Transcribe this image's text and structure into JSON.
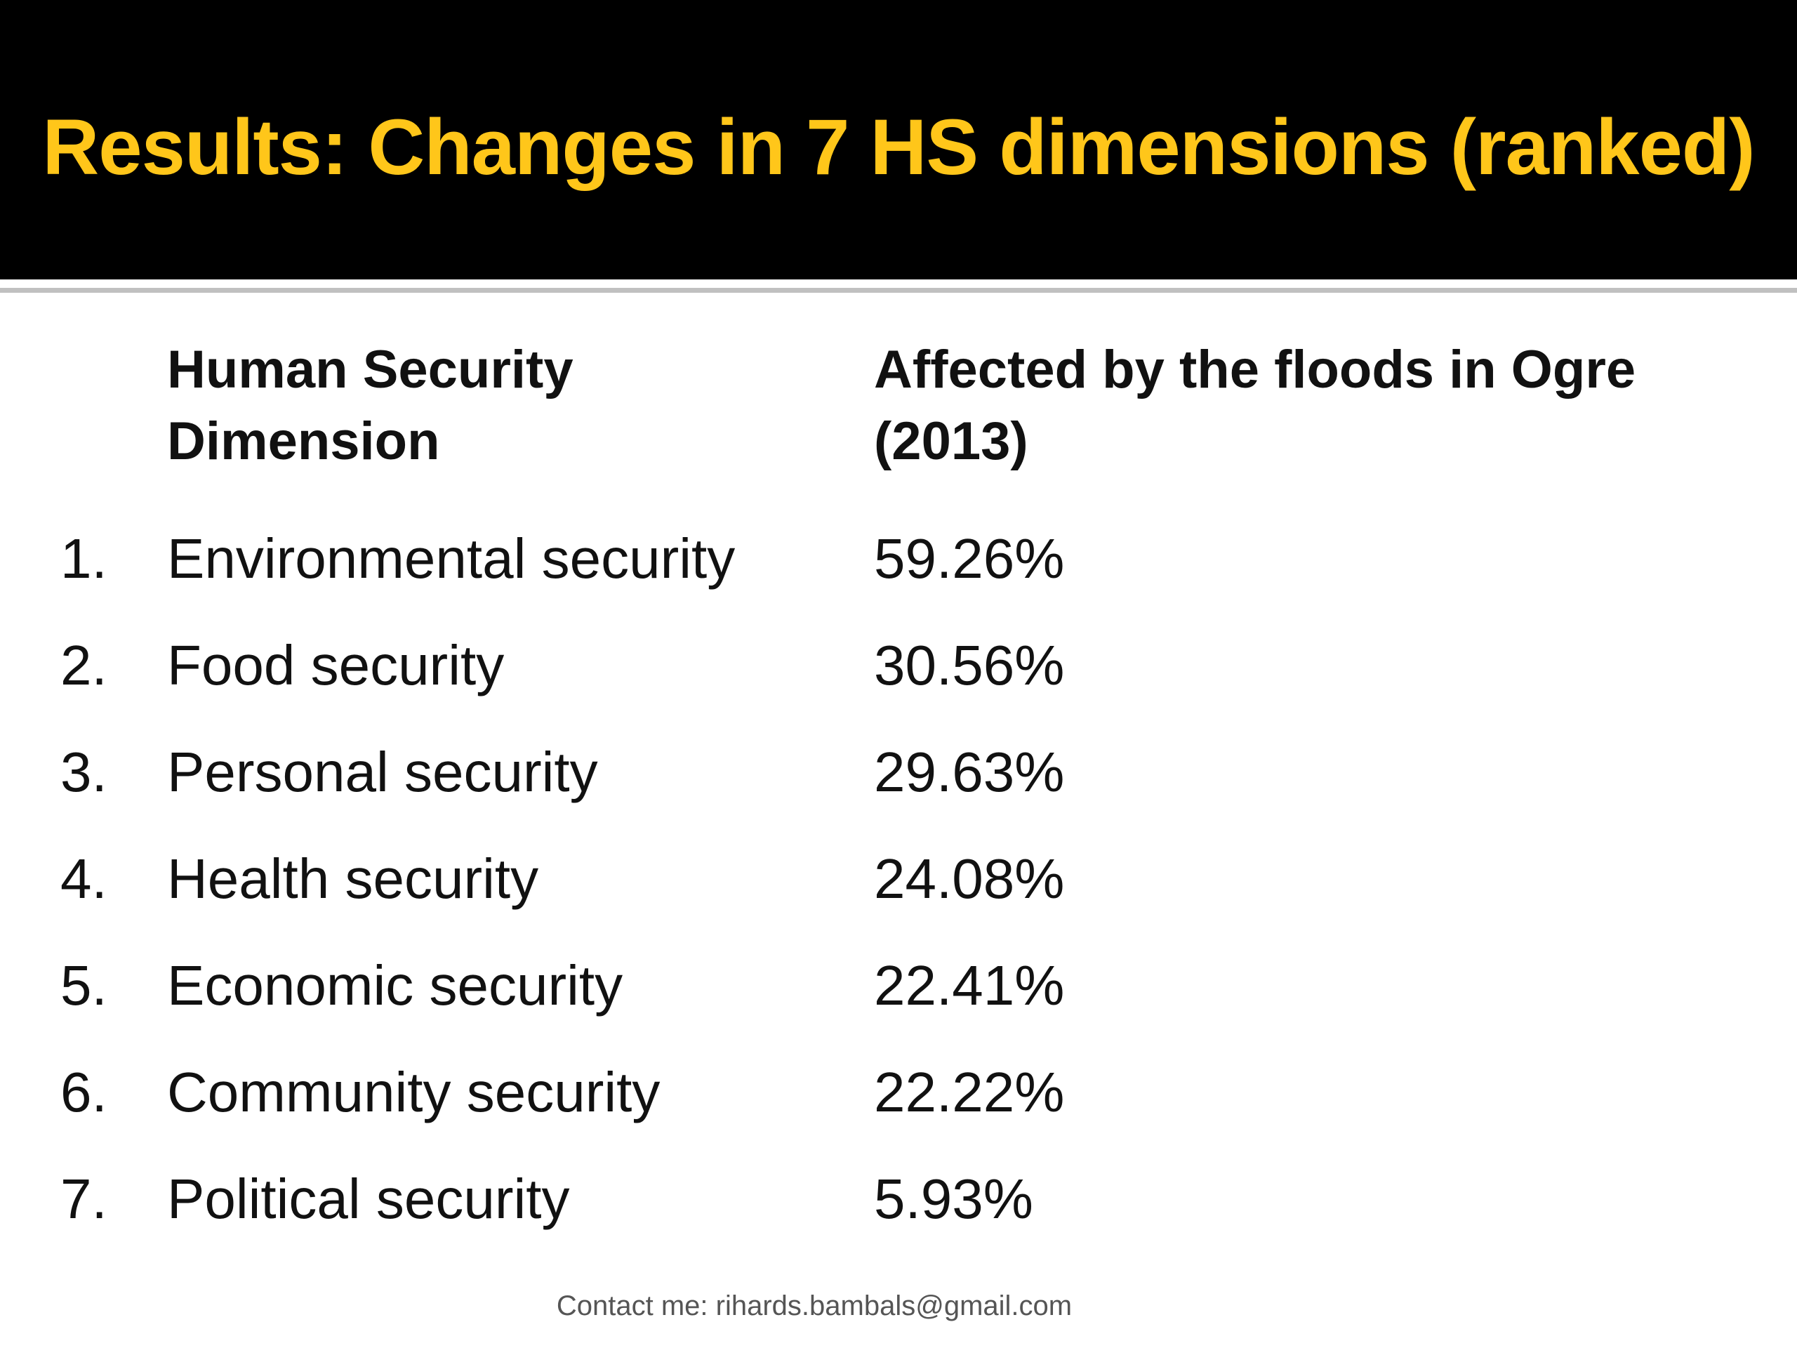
{
  "slide": {
    "title": "Results: Changes in 7 HS dimensions (ranked)",
    "title_color": "#FFC61A",
    "header_background": "#000000"
  },
  "table": {
    "header_dimension_line1": "Human Security",
    "header_dimension_line2": "Dimension",
    "header_value_line1": "Affected by the floods in Ogre",
    "header_value_line2": "(2013)",
    "rows": [
      {
        "rank": "1.",
        "dimension": "Environmental security",
        "value": "59.26%"
      },
      {
        "rank": "2.",
        "dimension": "Food security",
        "value": "30.56%"
      },
      {
        "rank": "3.",
        "dimension": "Personal security",
        "value": "29.63%"
      },
      {
        "rank": "4.",
        "dimension": "Health security",
        "value": "24.08%"
      },
      {
        "rank": "5.",
        "dimension": "Economic security",
        "value": "22.41%"
      },
      {
        "rank": "6.",
        "dimension": "Community security",
        "value": "22.22%"
      },
      {
        "rank": "7.",
        "dimension": "Political security",
        "value": "5.93%"
      }
    ]
  },
  "footer": {
    "contact": "Contact me: rihards.bambals@gmail.com"
  }
}
